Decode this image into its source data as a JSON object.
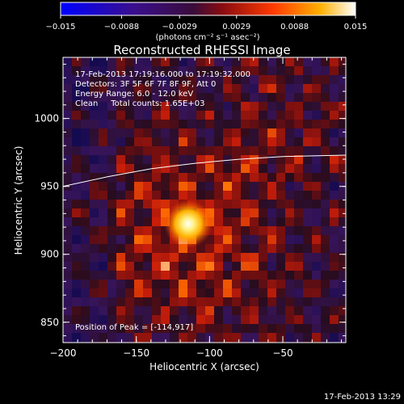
{
  "colorbar": {
    "min": -0.015,
    "max": 0.015,
    "tick_labels": [
      "−0.015",
      "−0.0088",
      "−0.0029",
      "0.0029",
      "0.0088",
      "0.015"
    ],
    "tick_values": [
      -0.015,
      -0.0088,
      -0.0029,
      0.0029,
      0.0088,
      0.015
    ],
    "unit_label": "(photons cm⁻² s⁻¹ asec⁻²)"
  },
  "chart_data": {
    "type": "heatmap",
    "title": "Reconstructed RHESSI Image",
    "xlabel": "Heliocentric X (arcsec)",
    "ylabel": "Heliocentric Y (arcsec)",
    "xlim": [
      -200,
      -7
    ],
    "ylim": [
      835,
      1045
    ],
    "x_ticks": [
      -200,
      -150,
      -100,
      -50
    ],
    "x_tick_labels": [
      "−200",
      "−150",
      "−100",
      "−50"
    ],
    "y_ticks": [
      850,
      900,
      950,
      1000
    ],
    "y_tick_labels": [
      "850",
      "900",
      "950",
      "1000"
    ],
    "peak": {
      "x": -114,
      "y": 917,
      "value": 0.015
    },
    "limb_curve": [
      [
        -200,
        950
      ],
      [
        -170,
        957
      ],
      [
        -140,
        963
      ],
      [
        -110,
        967
      ],
      [
        -80,
        970
      ],
      [
        -50,
        972
      ],
      [
        -7,
        973
      ]
    ],
    "annotations": [
      "17-Feb-2013 17:19:16.000 to 17:19:32.000",
      "Detectors: 3F 5F 6F 7F 8F 9F, Att 0",
      "Energy Range: 6.0 - 12.0 keV",
      "Clean     Total counts: 1.65E+03"
    ],
    "peak_label": "Position of Peak = [-114,917]",
    "colors": {
      "background": "#000000",
      "axes": "#ffffff",
      "colormap": [
        "#0000ff",
        "#3a0f8c",
        "#5a1a6a",
        "#b01010",
        "#ff3a00",
        "#ffb000",
        "#ffffff"
      ]
    }
  },
  "footer": {
    "timestamp": "17-Feb-2013 13:29"
  }
}
